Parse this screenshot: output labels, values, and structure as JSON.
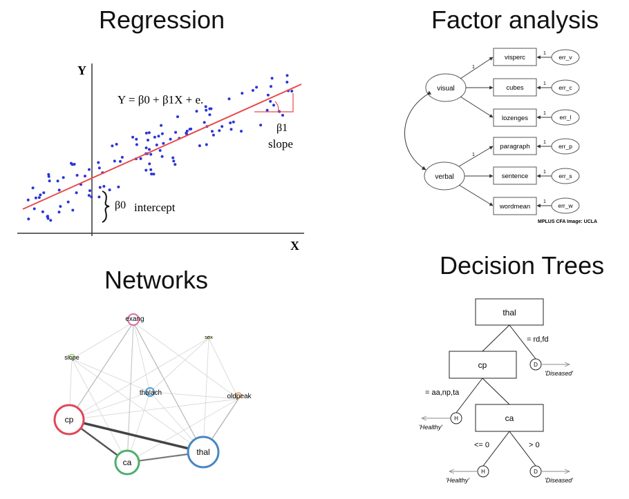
{
  "panels": {
    "regression": {
      "title": "Regression",
      "axis_y": "Y",
      "axis_x": "X",
      "equation": "Y = β0 + β1X + e.",
      "slope_symbol": "β1",
      "slope_label": "slope",
      "intercept_symbol": "β0",
      "intercept_label": "intercept"
    },
    "factor": {
      "title": "Factor analysis",
      "factors": [
        "visual",
        "verbal"
      ],
      "indicators": [
        "visperc",
        "cubes",
        "lozenges",
        "paragraph",
        "sentence",
        "wordmean"
      ],
      "errors": [
        "err_v",
        "err_c",
        "err_l",
        "err_p",
        "err_s",
        "err_w"
      ],
      "loading_one": "1",
      "caption": "MPLUS CFA Image: UCLA"
    },
    "networks": {
      "title": "Networks",
      "nodes": [
        "exang",
        "sex",
        "slope",
        "thalach",
        "oldpeak",
        "cp",
        "ca",
        "thal"
      ],
      "colors": {
        "cp": "#e04858",
        "ca": "#4caf6a",
        "thal": "#4a86c5",
        "exang": "#d66aa6",
        "thalach": "#4a9fd6",
        "oldpeak": "#e89a4a",
        "slope": "#9bc86a",
        "sex": "#d9b84a"
      }
    },
    "trees": {
      "title": "Decision Trees",
      "root": "thal",
      "root_edge": "= rd,fd",
      "node_cp": "cp",
      "cp_edge": "= aa,np,ta",
      "node_ca": "ca",
      "ca_left": "<= 0",
      "ca_right": "> 0",
      "leaf_H": "H",
      "leaf_D": "D",
      "healthy": "'Healthy'",
      "diseased": "'Diseased'"
    }
  }
}
